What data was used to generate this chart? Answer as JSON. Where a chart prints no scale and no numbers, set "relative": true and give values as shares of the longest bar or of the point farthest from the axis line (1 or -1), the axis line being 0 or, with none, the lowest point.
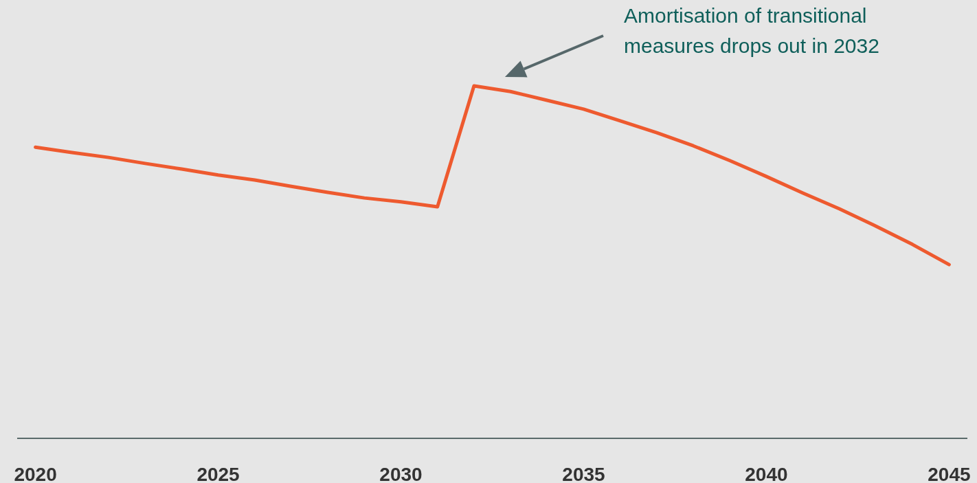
{
  "chart_data": {
    "type": "line",
    "relative": true,
    "x": [
      2020,
      2021,
      2022,
      2023,
      2024,
      2025,
      2026,
      2027,
      2028,
      2029,
      2030,
      2031,
      2032,
      2033,
      2034,
      2035,
      2036,
      2037,
      2038,
      2039,
      2040,
      2041,
      2042,
      2043,
      2044,
      2045
    ],
    "series": [
      {
        "color": "#ee5a2f",
        "values": [
          0.826,
          0.811,
          0.797,
          0.78,
          0.764,
          0.747,
          0.733,
          0.715,
          0.698,
          0.682,
          0.671,
          0.657,
          1,
          0.984,
          0.959,
          0.934,
          0.901,
          0.867,
          0.83,
          0.788,
          0.743,
          0.696,
          0.651,
          0.602,
          0.55,
          0.493
        ]
      }
    ],
    "xlim": [
      2019.5,
      2045.5
    ],
    "xticks": [
      2020,
      2025,
      2030,
      2035,
      2040,
      2045
    ],
    "annotations": [
      "Amortisation of transitional measures drops out in 2032"
    ],
    "marker": "none",
    "line_style": "solid"
  }
}
